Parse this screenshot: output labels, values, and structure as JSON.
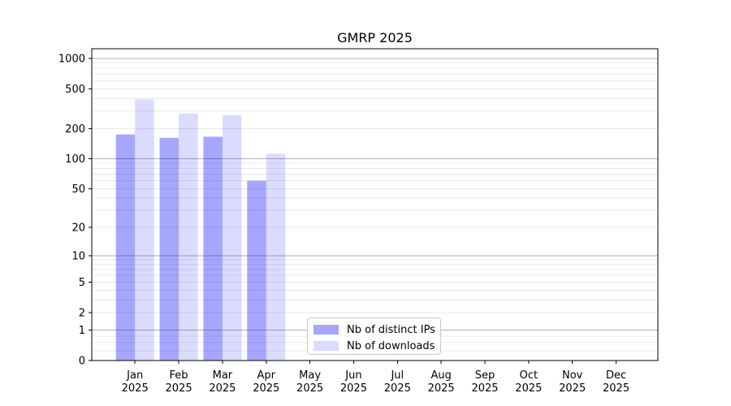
{
  "chart_data": {
    "type": "bar",
    "title": "GMRP 2025",
    "categories": [
      "Jan 2025",
      "Feb 2025",
      "Mar 2025",
      "Apr 2025",
      "May 2025",
      "Jun 2025",
      "Jul 2025",
      "Aug 2025",
      "Sep 2025",
      "Oct 2025",
      "Nov 2025",
      "Dec 2025"
    ],
    "series": [
      {
        "name": "Nb of distinct IPs",
        "color": "#a6a6ff",
        "rgba": "rgba(0,0,255,0.35)",
        "values": [
          175,
          162,
          166,
          60,
          0,
          0,
          0,
          0,
          0,
          0,
          0,
          0
        ]
      },
      {
        "name": "Nb of downloads",
        "color": "#dbdbff",
        "rgba": "rgba(0,0,255,0.14)",
        "values": [
          390,
          283,
          273,
          112,
          0,
          0,
          0,
          0,
          0,
          0,
          0,
          0
        ]
      }
    ],
    "xlabel": "",
    "ylabel": "",
    "y_scale": "symlog ln(1+v)",
    "y_ticks": [
      0,
      1,
      2,
      5,
      10,
      20,
      50,
      100,
      200,
      500,
      1000
    ],
    "y_minor_gridlines": [
      0.25,
      0.5,
      0.75,
      2,
      3,
      4,
      5,
      6,
      7,
      8,
      9,
      20,
      30,
      40,
      50,
      60,
      70,
      80,
      90,
      200,
      300,
      400,
      500,
      600,
      700,
      800,
      900
    ],
    "y_major_gridlines": [
      1,
      10,
      100,
      1000
    ],
    "ylim": [
      0,
      1250
    ],
    "grid": "horizontal major+minor",
    "legend_position": "inside bottom-center",
    "colors": {
      "grid_major": "#b0b0b0",
      "grid_minor": "#e8e8e8",
      "axis": "#000000",
      "text": "#000000"
    }
  }
}
